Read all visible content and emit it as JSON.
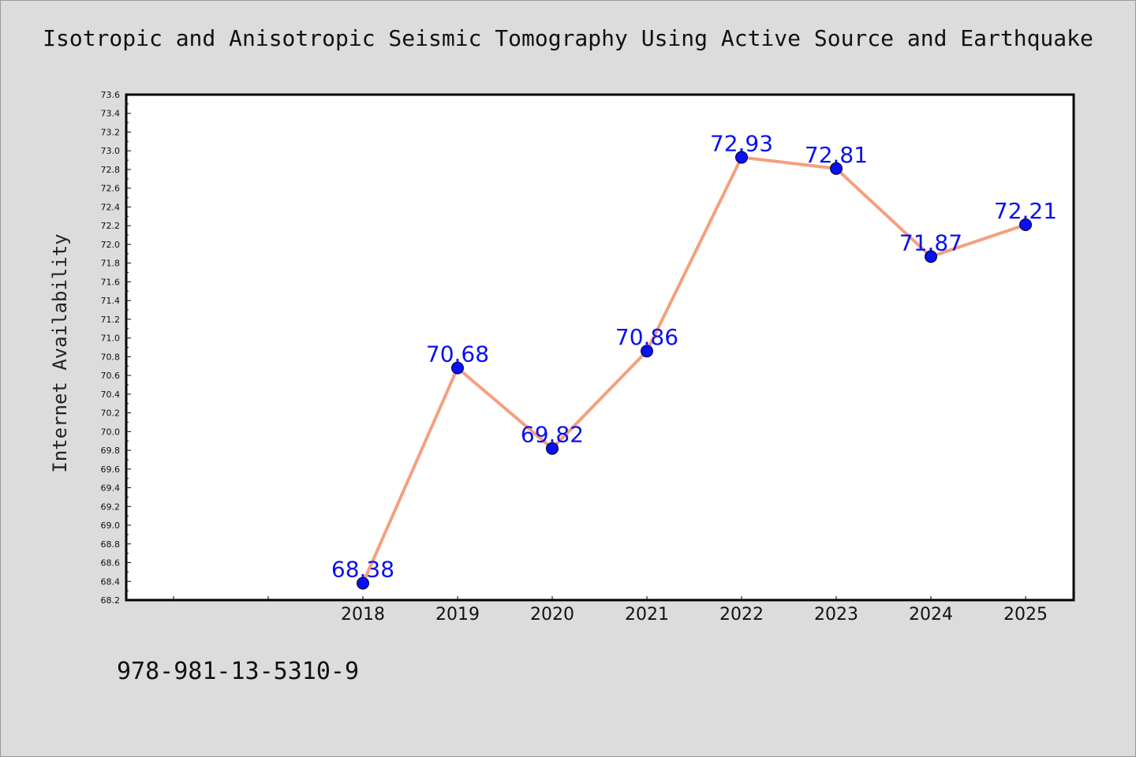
{
  "title": "Isotropic and Anisotropic Seismic Tomography Using Active Source and Earthquake",
  "footer_text": "978-981-13-5310-9",
  "chart_data": {
    "type": "line",
    "title": "Isotropic and Anisotropic Seismic Tomography Using Active Source and Earthquake",
    "xlabel": "",
    "ylabel": "Internet Availability",
    "categories": [
      "2018",
      "2019",
      "2020",
      "2021",
      "2022",
      "2023",
      "2024",
      "2025"
    ],
    "series": [
      {
        "values": [
          68.38,
          70.68,
          69.82,
          70.86,
          72.93,
          72.81,
          71.87,
          72.21
        ],
        "labels": [
          "68.38",
          "70.68",
          "69.82",
          "70.86",
          "72.93",
          "72.81",
          "71.87",
          "72.21"
        ]
      }
    ],
    "ylim": [
      68.2,
      73.6
    ],
    "yticks": [
      "68.2",
      "68.4",
      "68.6",
      "68.8",
      "69.0",
      "69.2",
      "69.4",
      "69.6",
      "69.8",
      "70.0",
      "70.2",
      "70.4",
      "70.6",
      "70.8",
      "71.0",
      "71.2",
      "71.4",
      "71.6",
      "71.8",
      "72.0",
      "72.2",
      "72.4",
      "72.6",
      "72.8",
      "73.0",
      "73.2",
      "73.4",
      "73.6"
    ],
    "line_color": "#f4a07e",
    "marker_color": "#0a10f0",
    "label_color": "#0a10f0",
    "grid": false,
    "legend": false
  }
}
